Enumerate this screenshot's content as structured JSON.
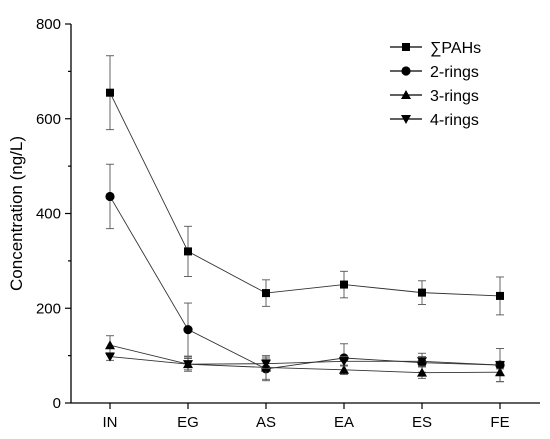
{
  "chart_data": {
    "type": "line",
    "title": "",
    "xlabel": "",
    "ylabel": "Concentration (ng/L)",
    "ylim": [
      0,
      800
    ],
    "yticks": [
      0,
      200,
      400,
      600,
      800
    ],
    "categories": [
      "IN",
      "EG",
      "AS",
      "EA",
      "ES",
      "FE"
    ],
    "legend_position": "top-right",
    "grid": false,
    "series": [
      {
        "name": "∑PAHs",
        "marker": "square",
        "values": [
          655,
          320,
          232,
          250,
          233,
          226
        ],
        "errors": [
          78,
          53,
          28,
          28,
          25,
          40
        ]
      },
      {
        "name": "2-rings",
        "marker": "circle",
        "values": [
          436,
          155,
          72,
          95,
          85,
          80
        ],
        "errors": [
          68,
          56,
          25,
          30,
          20,
          35
        ]
      },
      {
        "name": "3-rings",
        "marker": "triangle-up",
        "values": [
          122,
          82,
          75,
          70,
          64,
          65
        ],
        "errors": [
          20,
          15,
          25,
          10,
          12,
          20
        ]
      },
      {
        "name": "4-rings",
        "marker": "triangle-down",
        "values": [
          98,
          82,
          83,
          88,
          88,
          80
        ],
        "errors": [
          8,
          12,
          10,
          10,
          10,
          8
        ]
      }
    ]
  }
}
